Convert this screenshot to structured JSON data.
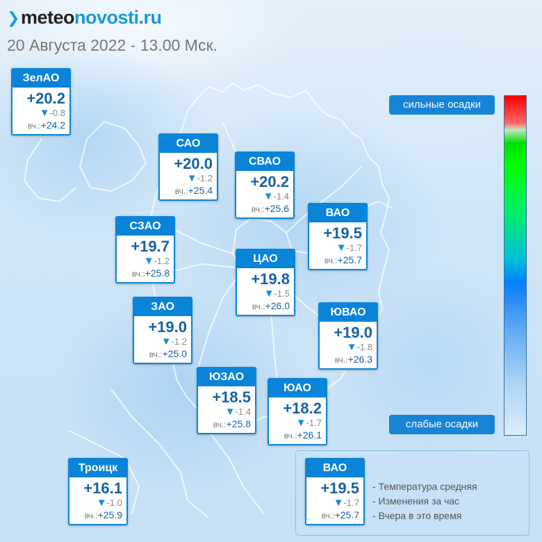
{
  "header": {
    "logo_part1": "meteo",
    "logo_part2": "novosti.ru",
    "date_line": "20 Августа 2022 - 13.00 Мск."
  },
  "districts": [
    {
      "name": "ЗелАО",
      "temp": "+20.2",
      "change": "-0.8",
      "yesterday_label": "вч.:",
      "yesterday": "+24.2"
    },
    {
      "name": "САО",
      "temp": "+20.0",
      "change": "-1.2",
      "yesterday_label": "вч.:",
      "yesterday": "+25.4"
    },
    {
      "name": "СВАО",
      "temp": "+20.2",
      "change": "-1.4",
      "yesterday_label": "вч.:",
      "yesterday": "+25.6"
    },
    {
      "name": "ВАО",
      "temp": "+19.5",
      "change": "-1.7",
      "yesterday_label": "вч.:",
      "yesterday": "+25.7"
    },
    {
      "name": "СЗАО",
      "temp": "+19.7",
      "change": "-1.2",
      "yesterday_label": "вч.:",
      "yesterday": "+25.8"
    },
    {
      "name": "ЦАО",
      "temp": "+19.8",
      "change": "-1.5",
      "yesterday_label": "вч.:",
      "yesterday": "+26.0"
    },
    {
      "name": "ЗАО",
      "temp": "+19.0",
      "change": "-1.2",
      "yesterday_label": "вч.:",
      "yesterday": "+25.0"
    },
    {
      "name": "ЮВАО",
      "temp": "+19.0",
      "change": "-1.8",
      "yesterday_label": "вч.:",
      "yesterday": "+26.3"
    },
    {
      "name": "ЮЗАО",
      "temp": "+18.5",
      "change": "-1.4",
      "yesterday_label": "вч.:",
      "yesterday": "+25.8"
    },
    {
      "name": "ЮАО",
      "temp": "+18.2",
      "change": "-1.7",
      "yesterday_label": "вч.:",
      "yesterday": "+26.1"
    },
    {
      "name": "Троицк",
      "temp": "+16.1",
      "change": "-1.0",
      "yesterday_label": "вч.:",
      "yesterday": "+25.9"
    }
  ],
  "scale": {
    "top_label": "сильные осадки",
    "bottom_label": "слабые осадки"
  },
  "legend": {
    "example": {
      "name": "ВАО",
      "temp": "+19.5",
      "change": "-1.7",
      "yesterday_label": "вч.:",
      "yesterday": "+25.7"
    },
    "lines": [
      "- Температура средняя",
      "- Изменения за час",
      "- Вчера в это время"
    ]
  },
  "colors": {
    "accent": "#0a84d8",
    "temp_text": "#1561a8",
    "logo_accent": "#1a9ad6"
  }
}
